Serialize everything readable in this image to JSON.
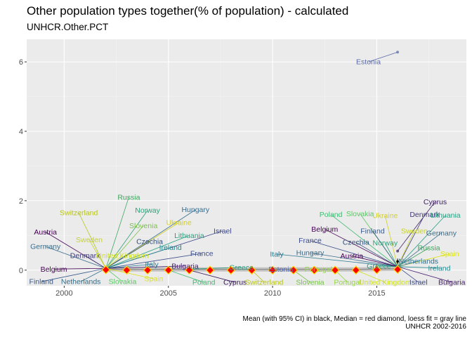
{
  "title": "Other population types together(% of population) - calculated",
  "subtitle": "UNHCR.Other.PCT",
  "caption_line1": "Mean (with 95% CI) in black, Median = red diamond, loess fit = gray line",
  "caption_line2": "UNHCR 2002-2016",
  "colors": {
    "panel": "#ebebeb",
    "grid_major": "#ffffff",
    "grid_minor": "#f4f4f4",
    "median": "#ff0000",
    "median_fill": "#ffd700",
    "loess": "#b3b3b3",
    "mean": "#000000"
  },
  "chart_data": {
    "type": "scatter",
    "title": "Other population types together(% of population) - calculated",
    "subtitle": "UNHCR.Other.PCT",
    "xlabel": "",
    "ylabel": "",
    "xlim": [
      1998.2,
      2019.3
    ],
    "ylim": [
      -0.45,
      6.65
    ],
    "x_ticks": [
      2000,
      2005,
      2010,
      2015
    ],
    "y_ticks": [
      0,
      2,
      4,
      6
    ],
    "grid": true,
    "median_series": {
      "x": [
        2002,
        2003,
        2004,
        2005,
        2006,
        2007,
        2008,
        2009,
        2010,
        2011,
        2012,
        2013,
        2014,
        2015,
        2016
      ],
      "y": [
        0.01,
        0.0,
        0.0,
        0.0,
        0.0,
        0.0,
        0.0,
        0.0,
        0.0,
        0.0,
        0.0,
        0.0,
        0.0,
        0.01,
        0.02
      ]
    },
    "mean_series": {
      "x": [
        2002,
        2003,
        2004,
        2005,
        2006,
        2007,
        2008,
        2009,
        2010,
        2011,
        2012,
        2013,
        2014,
        2015,
        2016
      ],
      "y": [
        0.02,
        0.02,
        0.02,
        0.02,
        0.02,
        0.02,
        0.02,
        0.02,
        0.02,
        0.02,
        0.02,
        0.03,
        0.04,
        0.08,
        0.25
      ]
    },
    "points": [
      {
        "label": "Estonia",
        "x": 2016,
        "y": 6.28,
        "lx": 2014.6,
        "ly": 6.0,
        "color": "#5a6aa6"
      },
      {
        "label": "Cyprus",
        "x": 2016,
        "y": 0.55,
        "lx": 2017.8,
        "ly": 1.97,
        "color": "#3a1a5c"
      },
      {
        "label": "Russia",
        "x": 2002,
        "y": 0.05,
        "lx": 2003.1,
        "ly": 2.1,
        "color": "#3ea55e"
      },
      {
        "label": "Switzerland",
        "x": 2002,
        "y": 0.05,
        "lx": 2000.7,
        "ly": 1.65,
        "color": "#b8c420"
      },
      {
        "label": "Norway",
        "x": 2002,
        "y": 0.05,
        "lx": 2004.0,
        "ly": 1.72,
        "color": "#2ea07a"
      },
      {
        "label": "Slovenia",
        "x": 2002,
        "y": 0.05,
        "lx": 2003.8,
        "ly": 1.28,
        "color": "#7ac24a"
      },
      {
        "label": "Ukraine",
        "x": 2002,
        "y": 0.05,
        "lx": 2005.5,
        "ly": 1.37,
        "color": "#d2d024"
      },
      {
        "label": "Hungary",
        "x": 2002,
        "y": 0.05,
        "lx": 2006.3,
        "ly": 1.74,
        "color": "#3a6c8c"
      },
      {
        "label": "Austria",
        "x": 2002,
        "y": 0.05,
        "lx": 1999.1,
        "ly": 1.1,
        "color": "#440154"
      },
      {
        "label": "Sweden",
        "x": 2002,
        "y": 0.05,
        "lx": 2001.2,
        "ly": 0.87,
        "color": "#c7d32e"
      },
      {
        "label": "Czechia",
        "x": 2002,
        "y": 0.05,
        "lx": 2004.1,
        "ly": 0.82,
        "color": "#31517e"
      },
      {
        "label": "Lithuania",
        "x": 2002,
        "y": 0.05,
        "lx": 2006.0,
        "ly": 1.0,
        "color": "#27a081"
      },
      {
        "label": "Israel",
        "x": 2002,
        "y": 0.05,
        "lx": 2007.6,
        "ly": 1.13,
        "color": "#3e4a89"
      },
      {
        "label": "Germany",
        "x": 2002,
        "y": 0.05,
        "lx": 1999.1,
        "ly": 0.68,
        "color": "#3b6e8c"
      },
      {
        "label": "Ireland",
        "x": 2002,
        "y": 0.05,
        "lx": 2005.1,
        "ly": 0.65,
        "color": "#23898e"
      },
      {
        "label": "Denmark",
        "x": 2002,
        "y": 0.05,
        "lx": 2001.0,
        "ly": 0.42,
        "color": "#403a7a"
      },
      {
        "label": "United Kingdom",
        "x": 2002,
        "y": 0.05,
        "lx": 2002.8,
        "ly": 0.42,
        "color": "#cfe11c"
      },
      {
        "label": "France",
        "x": 2002,
        "y": 0.05,
        "lx": 2006.6,
        "ly": 0.48,
        "color": "#3d4e8a"
      },
      {
        "label": "Belgium",
        "x": 2002,
        "y": 0.05,
        "lx": 1999.5,
        "ly": 0.03,
        "color": "#440154"
      },
      {
        "label": "Italy",
        "x": 2002,
        "y": 0.05,
        "lx": 2004.2,
        "ly": 0.17,
        "color": "#2a788e"
      },
      {
        "label": "Bulgaria",
        "x": 2002,
        "y": 0.05,
        "lx": 2005.8,
        "ly": 0.12,
        "color": "#481f70"
      },
      {
        "label": "Spain",
        "x": 2002,
        "y": 0.05,
        "lx": 2004.3,
        "ly": -0.25,
        "color": "#dce319"
      },
      {
        "label": "Finland",
        "x": 2002,
        "y": 0.05,
        "lx": 1998.9,
        "ly": -0.33,
        "color": "#3a5b8c"
      },
      {
        "label": "Netherlands",
        "x": 2002,
        "y": 0.05,
        "lx": 2000.8,
        "ly": -0.33,
        "color": "#2d6f8e"
      },
      {
        "label": "Slovakia",
        "x": 2002,
        "y": 0.05,
        "lx": 2002.8,
        "ly": -0.33,
        "color": "#5ac864"
      },
      {
        "label": "Poland",
        "x": 2005,
        "y": 0.0,
        "lx": 2006.7,
        "ly": -0.35,
        "color": "#3fbc73"
      },
      {
        "label": "Cyprus",
        "x": 2006,
        "y": 0.0,
        "lx": 2008.2,
        "ly": -0.35,
        "color": "#3a1a5c"
      },
      {
        "label": "Greece",
        "x": 2006,
        "y": 0.03,
        "lx": 2008.5,
        "ly": 0.08,
        "color": "#2e9a80"
      },
      {
        "label": "Switzerland",
        "x": 2009,
        "y": 0.0,
        "lx": 2009.6,
        "ly": -0.35,
        "color": "#b8c420"
      },
      {
        "label": "Estonia",
        "x": 2010,
        "y": 0.0,
        "lx": 2010.4,
        "ly": 0.03,
        "color": "#5a6aa6"
      },
      {
        "label": "Slovenia",
        "x": 2011,
        "y": 0.0,
        "lx": 2011.8,
        "ly": -0.35,
        "color": "#7ac24a"
      },
      {
        "label": "Portugal",
        "x": 2012,
        "y": 0.0,
        "lx": 2012.2,
        "ly": 0.03,
        "color": "#95d840"
      },
      {
        "label": "Portugal",
        "x": 2013,
        "y": 0.0,
        "lx": 2013.6,
        "ly": -0.35,
        "color": "#95d840"
      },
      {
        "label": "United Kingdom",
        "x": 2014,
        "y": 0.0,
        "lx": 2015.4,
        "ly": -0.35,
        "color": "#cfe11c"
      },
      {
        "label": "Poland",
        "x": 2016,
        "y": 0.1,
        "lx": 2012.8,
        "ly": 1.6,
        "color": "#3fbc73"
      },
      {
        "label": "Slovakia",
        "x": 2016,
        "y": 0.1,
        "lx": 2014.2,
        "ly": 1.62,
        "color": "#5ac864"
      },
      {
        "label": "Ukraine",
        "x": 2016,
        "y": 0.1,
        "lx": 2015.4,
        "ly": 1.57,
        "color": "#d2d024"
      },
      {
        "label": "Denmark",
        "x": 2016,
        "y": 0.1,
        "lx": 2017.3,
        "ly": 1.6,
        "color": "#403a7a"
      },
      {
        "label": "Lithuania",
        "x": 2016,
        "y": 0.1,
        "lx": 2018.3,
        "ly": 1.58,
        "color": "#27a081"
      },
      {
        "label": "Belgium",
        "x": 2016,
        "y": 0.1,
        "lx": 2012.5,
        "ly": 1.18,
        "color": "#440154"
      },
      {
        "label": "Finland",
        "x": 2016,
        "y": 0.1,
        "lx": 2014.8,
        "ly": 1.13,
        "color": "#3a5b8c"
      },
      {
        "label": "Sweden",
        "x": 2016,
        "y": 0.1,
        "lx": 2016.8,
        "ly": 1.13,
        "color": "#c7d32e"
      },
      {
        "label": "Germany",
        "x": 2016,
        "y": 0.1,
        "lx": 2018.1,
        "ly": 1.07,
        "color": "#3b6e8c"
      },
      {
        "label": "France",
        "x": 2016,
        "y": 0.1,
        "lx": 2011.8,
        "ly": 0.85,
        "color": "#3d4e8a"
      },
      {
        "label": "Czechia",
        "x": 2016,
        "y": 0.1,
        "lx": 2014.0,
        "ly": 0.8,
        "color": "#31517e"
      },
      {
        "label": "Norway",
        "x": 2016,
        "y": 0.1,
        "lx": 2015.4,
        "ly": 0.78,
        "color": "#2ea07a"
      },
      {
        "label": "Russia",
        "x": 2016,
        "y": 0.1,
        "lx": 2017.5,
        "ly": 0.64,
        "color": "#3ea55e"
      },
      {
        "label": "Italy",
        "x": 2016,
        "y": 0.1,
        "lx": 2010.2,
        "ly": 0.46,
        "color": "#2a788e"
      },
      {
        "label": "Hungary",
        "x": 2016,
        "y": 0.1,
        "lx": 2011.8,
        "ly": 0.5,
        "color": "#3a6c8c"
      },
      {
        "label": "Austria",
        "x": 2016,
        "y": 0.1,
        "lx": 2013.8,
        "ly": 0.41,
        "color": "#440154"
      },
      {
        "label": "Spain",
        "x": 2016,
        "y": 0.1,
        "lx": 2018.5,
        "ly": 0.47,
        "color": "#dce319"
      },
      {
        "label": "Netherlands",
        "x": 2016,
        "y": 0.1,
        "lx": 2017.0,
        "ly": 0.26,
        "color": "#2d6f8e"
      },
      {
        "label": "Ireland",
        "x": 2016,
        "y": 0.1,
        "lx": 2018.0,
        "ly": 0.06,
        "color": "#23898e"
      },
      {
        "label": "Greece",
        "x": 2016,
        "y": 0.1,
        "lx": 2015.1,
        "ly": 0.12,
        "color": "#2e9a80"
      },
      {
        "label": "Israel",
        "x": 2016,
        "y": 0.1,
        "lx": 2017.0,
        "ly": -0.35,
        "color": "#3e4a89"
      },
      {
        "label": "Bulgaria",
        "x": 2016,
        "y": 0.1,
        "lx": 2018.6,
        "ly": -0.35,
        "color": "#481f70"
      }
    ]
  }
}
